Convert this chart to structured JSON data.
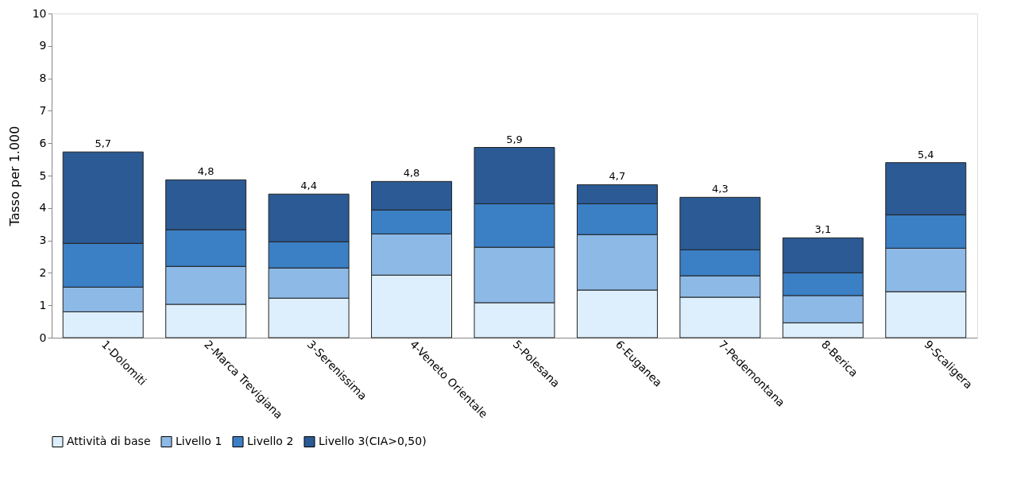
{
  "chart_data": {
    "type": "bar",
    "stacked": true,
    "ylabel": "Tasso per 1.000",
    "categories": [
      "1-Dolomiti",
      "2-Marca Trevigiana",
      "3-Serenissima",
      "4-Veneto Orientale",
      "5-Polesana",
      "6-Euganea",
      "7-Pedemontana",
      "8-Berica",
      "9-Scaligera"
    ],
    "series": [
      {
        "name": "Attività di base",
        "color": "#ddeffc",
        "values": [
          0.8,
          1.03,
          1.22,
          1.93,
          1.08,
          1.47,
          1.25,
          0.46,
          1.42
        ]
      },
      {
        "name": "Livello 1",
        "color": "#8db9e6",
        "values": [
          0.76,
          1.17,
          0.93,
          1.27,
          1.71,
          1.71,
          0.66,
          0.84,
          1.34
        ]
      },
      {
        "name": "Livello 2",
        "color": "#3b7fc4",
        "values": [
          1.35,
          1.13,
          0.81,
          0.74,
          1.34,
          0.95,
          0.8,
          0.7,
          1.03
        ]
      },
      {
        "name": "Livello 3(CIA>0,50)",
        "color": "#2b5a94",
        "values": [
          2.82,
          1.54,
          1.47,
          0.88,
          1.74,
          0.59,
          1.62,
          1.08,
          1.61
        ]
      }
    ],
    "totals": [
      "5,7",
      "4,8",
      "4,4",
      "4,8",
      "5,9",
      "4,7",
      "4,3",
      "3,1",
      "5,4"
    ],
    "ylim": [
      0,
      10
    ],
    "yticks": [
      0,
      1,
      2,
      3,
      4,
      5,
      6,
      7,
      8,
      9,
      10
    ],
    "grid": false,
    "legend": "bottom"
  }
}
